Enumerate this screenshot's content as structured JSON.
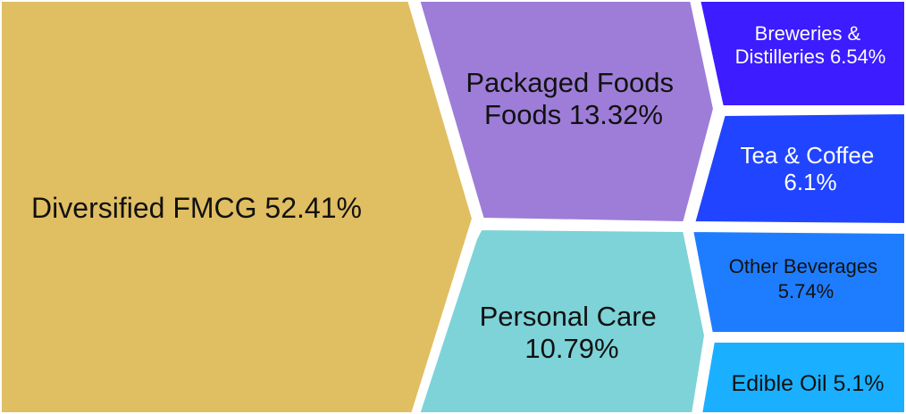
{
  "chart_data": {
    "type": "voronoi-treemap",
    "cells": [
      {
        "name": "Diversified FMCG",
        "value_label": "52.41%",
        "value": 52.41,
        "color": "#e0be62"
      },
      {
        "name": "Packaged Foods",
        "value_label": "13.32%",
        "value": 13.32,
        "color": "#9e7dd8"
      },
      {
        "name": "Personal Care",
        "value_label": "10.79%",
        "value": 10.79,
        "color": "#7dd3d8"
      },
      {
        "name": "Breweries & Distilleries",
        "value_label": "6.54%",
        "value": 6.54,
        "color": "#3d1cff"
      },
      {
        "name": "Tea & Coffee",
        "value_label": "6.1%",
        "value": 6.1,
        "color": "#2044ff"
      },
      {
        "name": "Other Beverages",
        "value_label": "5.74%",
        "value": 5.74,
        "color": "#1e7dff"
      },
      {
        "name": "Edible Oil",
        "value_label": "5.1%",
        "value": 5.1,
        "color": "#1ab0ff"
      }
    ]
  }
}
